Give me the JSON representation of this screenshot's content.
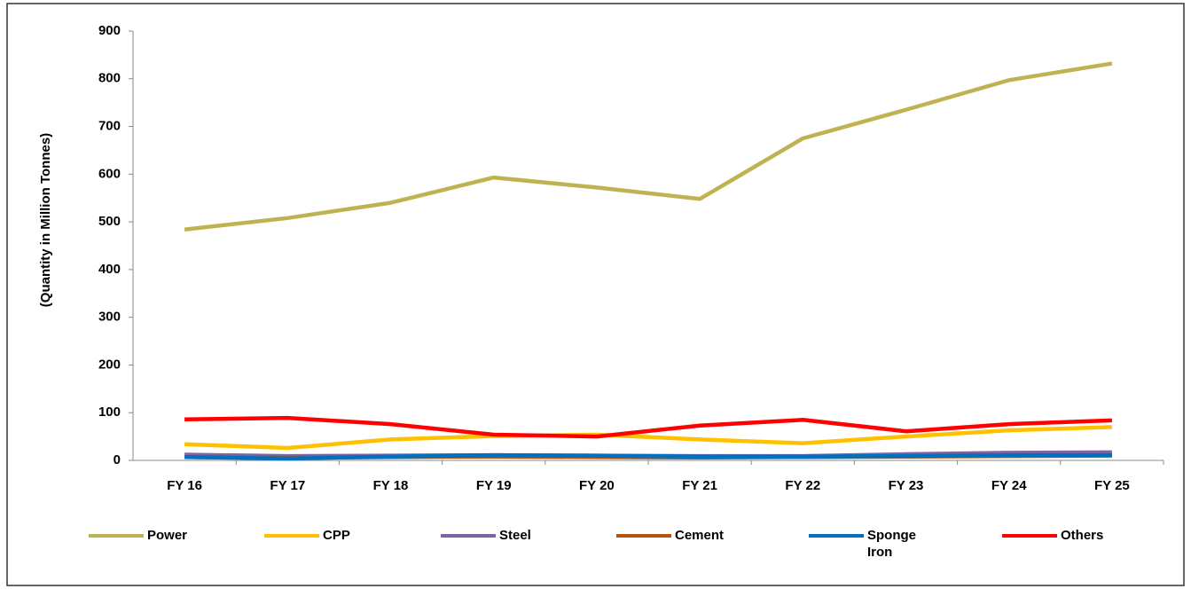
{
  "chart_data": {
    "type": "line",
    "y_label": "(Quantity in Million Tonnes)",
    "categories": [
      "FY 16",
      "FY 17",
      "FY 18",
      "FY 19",
      "FY 20",
      "FY 21",
      "FY 22",
      "FY 23",
      "FY 24",
      "FY 25"
    ],
    "series": [
      {
        "name": "Power",
        "color": "#bfb351",
        "values": [
          484,
          508,
          540,
          593,
          572,
          548,
          675,
          735,
          797,
          832
        ]
      },
      {
        "name": "CPP",
        "color": "#ffc000",
        "values": [
          34,
          26,
          44,
          51,
          54,
          44,
          36,
          50,
          63,
          70
        ]
      },
      {
        "name": "Steel",
        "color": "#8064a2",
        "values": [
          12,
          9,
          10,
          11,
          10,
          9,
          9,
          13,
          16,
          17
        ]
      },
      {
        "name": "Cement",
        "color": "#b5530f",
        "values": [
          7,
          5,
          7,
          8,
          7,
          6,
          7,
          8,
          9,
          10
        ]
      },
      {
        "name": "Sponge Iron",
        "color": "#0070c0",
        "values": [
          7,
          4,
          8,
          11,
          10,
          8,
          8,
          9,
          11,
          11
        ]
      },
      {
        "name": "Others",
        "color": "#ff0000",
        "values": [
          86,
          89,
          76,
          54,
          50,
          73,
          85,
          61,
          76,
          84
        ]
      }
    ],
    "ylim": [
      0,
      900
    ],
    "yticks": [
      0,
      100,
      200,
      300,
      400,
      500,
      600,
      700,
      800,
      900
    ],
    "grid": false,
    "legend": "bottom"
  }
}
